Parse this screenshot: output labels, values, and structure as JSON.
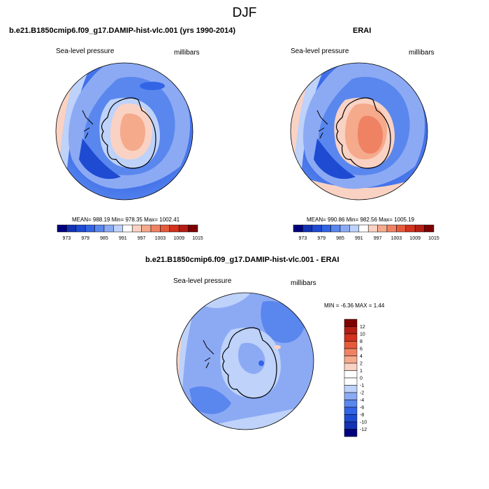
{
  "page": {
    "title": "DJF"
  },
  "contour_levels": [
    973,
    979,
    985,
    991,
    997,
    1003,
    1009,
    1015
  ],
  "panels": {
    "model": {
      "title": "b.e21.B1850cmip6.f09_g17.DAMIP-hist-vlc.001 (yrs 1990-2014)",
      "left_label": "Sea-level pressure",
      "right_label": "millibars",
      "stats": "MEAN= 988.19  Min= 978.35  Max= 1002.41"
    },
    "obs": {
      "title": "ERAI",
      "left_label": "Sea-level pressure",
      "right_label": "millibars",
      "stats": "MEAN= 990.86  Min= 982.56  Max= 1005.19"
    },
    "diff": {
      "title": "b.e21.B1850cmip6.f09_g17.DAMIP-hist-vlc.001 - ERAI",
      "left_label": "Sea-level pressure",
      "right_label": "millibars",
      "stats": "MIN =  -6.36 MAX =   1.44",
      "levels": [
        "12",
        "10",
        "8",
        "6",
        "4",
        "2",
        "1",
        "0",
        "-1",
        "-2",
        "-4",
        "-6",
        "-8",
        "-10",
        "-12"
      ]
    }
  },
  "colors": {
    "horizontal_bar": [
      "#00007f",
      "#1432b4",
      "#1e4bd2",
      "#3264e6",
      "#5a87ee",
      "#8caaf4",
      "#bed2fa",
      "#ffffff",
      "#fad2c3",
      "#f5aa8c",
      "#f08264",
      "#e65a3c",
      "#d2321e",
      "#b41e14",
      "#7f0000"
    ],
    "vertical_bar": [
      "#7f0000",
      "#b41e14",
      "#d2321e",
      "#e65a3c",
      "#f08264",
      "#f5aa8c",
      "#fad2c3",
      "#ffffff",
      "#ffffff",
      "#bed2fa",
      "#8caaf4",
      "#5a87ee",
      "#3264e6",
      "#1e4bd2",
      "#1432b4",
      "#00007f"
    ]
  }
}
